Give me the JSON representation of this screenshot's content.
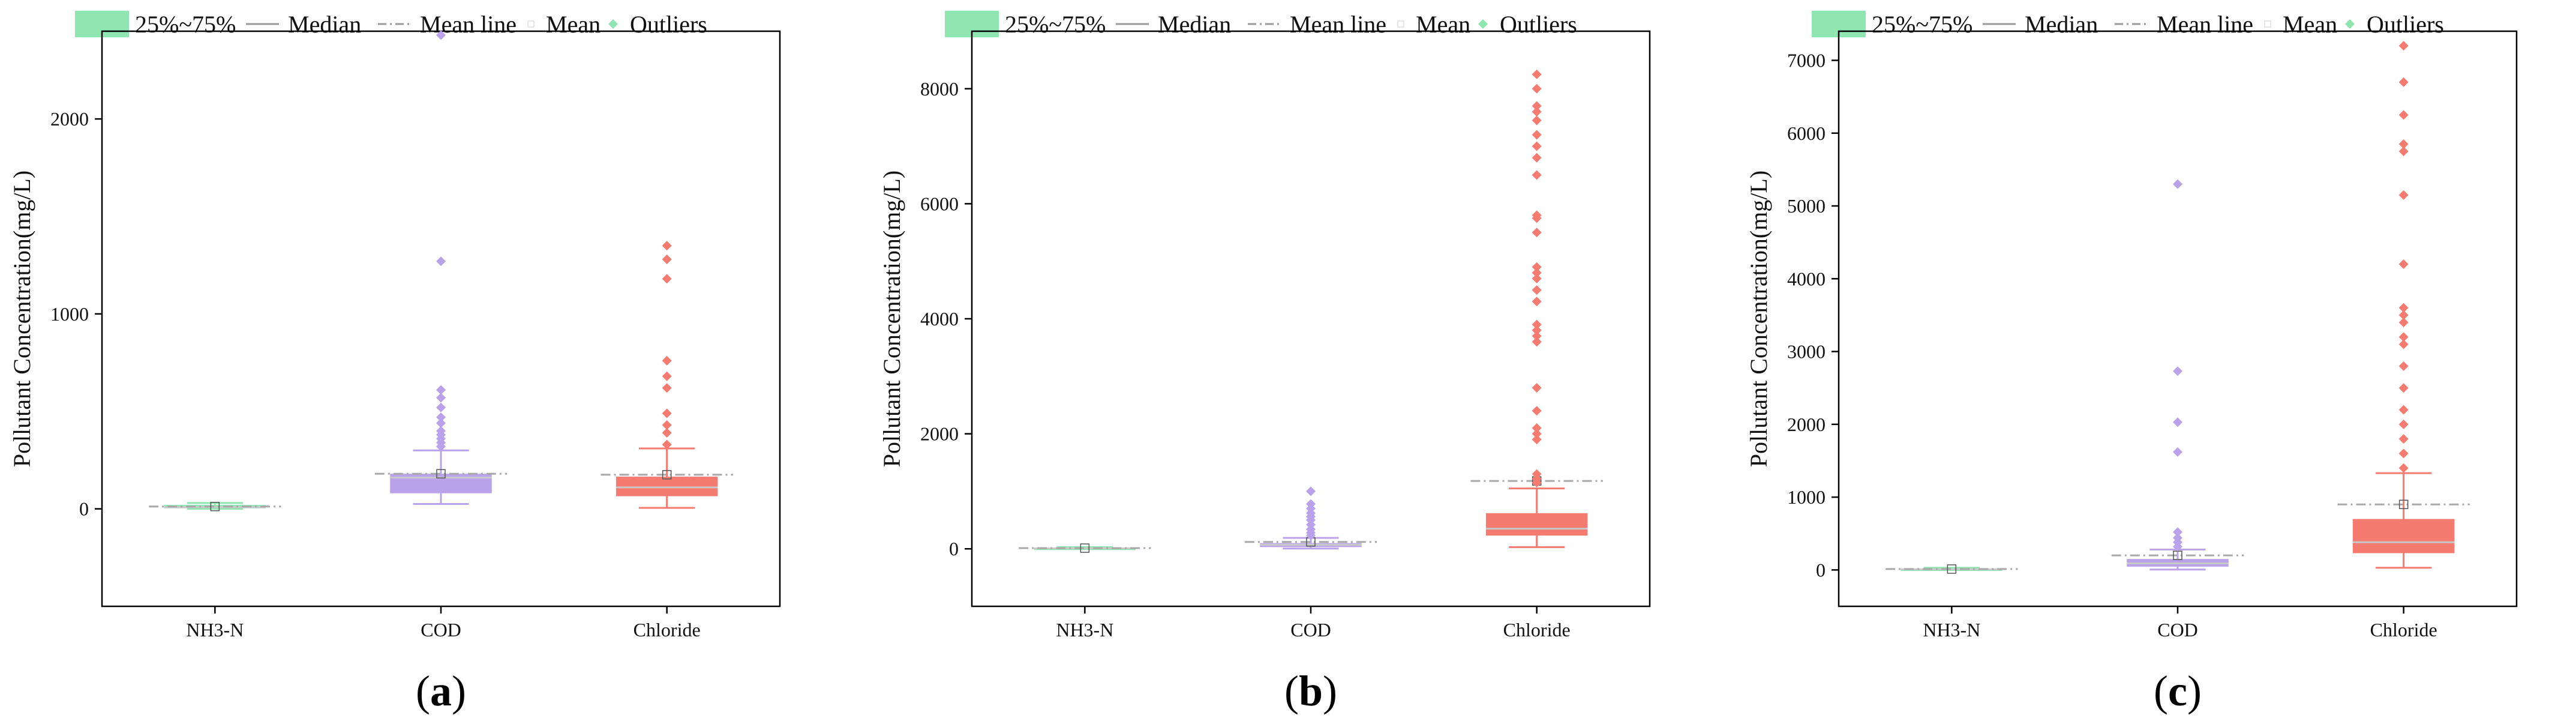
{
  "colors": {
    "nh3n": "#8fe6b0",
    "cod": "#b9a2ea",
    "chloride": "#f57a70",
    "median": "#c8c8c8",
    "meanline": "#a8a8a8",
    "axis": "#000000"
  },
  "legend": {
    "box": "25%~75%",
    "median": "Median",
    "mean_line": "Mean line",
    "mean": "Mean",
    "outliers": "Outliers"
  },
  "chart_data": [
    {
      "type": "box",
      "caption": {
        "open": "(",
        "letter": "a",
        "close": ")"
      },
      "ylabel": "Pollutant Concentration(mg/L)",
      "ylim": [
        -500,
        2450
      ],
      "yticks": [
        0,
        1000,
        2000
      ],
      "categories": [
        "NH3-N",
        "COD",
        "Chloride"
      ],
      "boxes": [
        {
          "name": "NH3-N",
          "q1": 3,
          "median": 8,
          "q3": 20,
          "whisker_low": 0,
          "whisker_high": 30,
          "mean": 12,
          "outliers": []
        },
        {
          "name": "COD",
          "q1": 80,
          "median": 160,
          "q3": 180,
          "whisker_low": 25,
          "whisker_high": 300,
          "mean": 180,
          "outliers": [
            320,
            340,
            360,
            380,
            400,
            440,
            470,
            520,
            570,
            610,
            1270,
            2430
          ]
        },
        {
          "name": "Chloride",
          "q1": 65,
          "median": 110,
          "q3": 165,
          "whisker_low": 5,
          "whisker_high": 310,
          "mean": 175,
          "outliers": [
            330,
            390,
            430,
            490,
            620,
            680,
            760,
            1180,
            1280,
            1350
          ]
        }
      ]
    },
    {
      "type": "box",
      "caption": {
        "open": "(",
        "letter": "b",
        "close": ")"
      },
      "ylabel": "Pollutant Concentration(mg/L)",
      "ylim": [
        -1000,
        9000
      ],
      "yticks": [
        0,
        2000,
        4000,
        6000,
        8000
      ],
      "categories": [
        "NH3-N",
        "COD",
        "Chloride"
      ],
      "boxes": [
        {
          "name": "NH3-N",
          "q1": 3,
          "median": 8,
          "q3": 20,
          "whisker_low": 0,
          "whisker_high": 30,
          "mean": 12,
          "outliers": []
        },
        {
          "name": "COD",
          "q1": 30,
          "median": 70,
          "q3": 100,
          "whisker_low": 5,
          "whisker_high": 190,
          "mean": 120,
          "outliers": [
            230,
            280,
            340,
            420,
            500,
            560,
            620,
            700,
            780,
            1000
          ]
        },
        {
          "name": "Chloride",
          "q1": 230,
          "median": 350,
          "q3": 620,
          "whisker_low": 30,
          "whisker_high": 1050,
          "mean": 1180,
          "outliers": [
            1150,
            1220,
            1300,
            1900,
            2000,
            2100,
            2400,
            2800,
            3600,
            3700,
            3800,
            3900,
            4300,
            4500,
            4700,
            4800,
            4900,
            5500,
            5750,
            5800,
            6500,
            6800,
            7000,
            7200,
            7450,
            7600,
            7700,
            8000,
            8250
          ]
        }
      ]
    },
    {
      "type": "box",
      "caption": {
        "open": "(",
        "letter": "c",
        "close": ")"
      },
      "ylabel": "Pollutant Concentration(mg/L)",
      "ylim": [
        -500,
        7400
      ],
      "yticks": [
        0,
        1000,
        2000,
        3000,
        4000,
        5000,
        6000,
        7000
      ],
      "categories": [
        "NH3-N",
        "COD",
        "Chloride"
      ],
      "boxes": [
        {
          "name": "NH3-N",
          "q1": 3,
          "median": 8,
          "q3": 20,
          "whisker_low": 0,
          "whisker_high": 30,
          "mean": 12,
          "outliers": []
        },
        {
          "name": "COD",
          "q1": 45,
          "median": 90,
          "q3": 150,
          "whisker_low": 5,
          "whisker_high": 280,
          "mean": 200,
          "outliers": [
            320,
            380,
            440,
            520,
            1620,
            2030,
            2730,
            5300
          ]
        },
        {
          "name": "Chloride",
          "q1": 230,
          "median": 380,
          "q3": 700,
          "whisker_low": 30,
          "whisker_high": 1330,
          "mean": 900,
          "outliers": [
            1400,
            1600,
            1800,
            2000,
            2200,
            2500,
            2800,
            3100,
            3200,
            3400,
            3500,
            3600,
            4200,
            5150,
            5750,
            5850,
            6250,
            6700,
            7200
          ]
        }
      ]
    }
  ]
}
